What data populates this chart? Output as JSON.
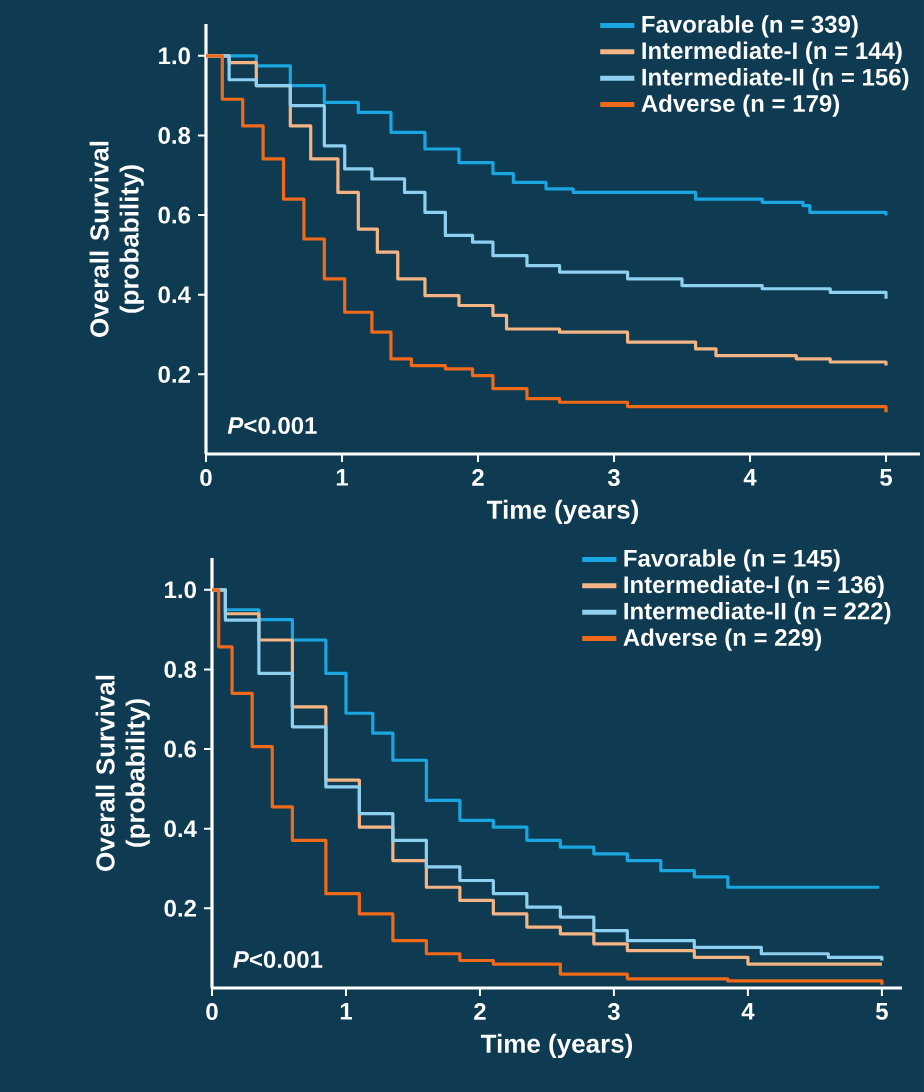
{
  "chart_data": [
    {
      "type": "step",
      "xlabel": "Time (years)",
      "ylabel": "Overall Survival (probability)",
      "xlim": [
        0,
        5.25
      ],
      "ylim": [
        0,
        1.08
      ],
      "xticks": [
        0,
        1,
        2,
        3,
        4,
        5
      ],
      "yticks": [
        {
          "value": 0.2,
          "label": "0.2"
        },
        {
          "value": 0.4,
          "label": "0.4"
        },
        {
          "value": 0.6,
          "label": "0.6"
        },
        {
          "value": 0.8,
          "label": "0.8"
        },
        {
          "value": 1,
          "label": "1.0"
        }
      ],
      "legend": "top right",
      "marker": "none",
      "line_style": "solid",
      "annotations": [
        "*P*<0.001"
      ],
      "series": [
        {
          "name": "Favorable (n = 339)",
          "color": "#1aa6e0",
          "x": [
            0,
            0.37,
            0.62,
            0.87,
            1.12,
            1.36,
            1.61,
            1.86,
            2.11,
            2.26,
            2.5,
            2.7,
            3.1,
            3.6,
            4.09,
            4.39,
            4.44,
            5
          ],
          "values": [
            1.0,
            0.975,
            0.925,
            0.883,
            0.858,
            0.808,
            0.766,
            0.732,
            0.704,
            0.682,
            0.666,
            0.657,
            0.657,
            0.64,
            0.632,
            0.624,
            0.607,
            0.599
          ]
        },
        {
          "name": "Intermediate-I (n = 144)",
          "color": "#f5b483",
          "x": [
            0,
            0.17,
            0.37,
            0.62,
            0.77,
            0.97,
            1.12,
            1.26,
            1.41,
            1.61,
            1.86,
            2.11,
            2.21,
            2.6,
            3.1,
            3.6,
            3.75,
            4.34,
            4.59,
            5
          ],
          "values": [
            1.0,
            0.983,
            0.925,
            0.824,
            0.741,
            0.657,
            0.565,
            0.507,
            0.44,
            0.398,
            0.373,
            0.348,
            0.314,
            0.306,
            0.281,
            0.264,
            0.247,
            0.239,
            0.231,
            0.222
          ]
        },
        {
          "name": "Intermediate-II (n = 156)",
          "color": "#8fd0f0",
          "x": [
            0,
            0.17,
            0.37,
            0.62,
            0.87,
            1.02,
            1.22,
            1.46,
            1.61,
            1.76,
            1.96,
            2.11,
            2.36,
            2.6,
            3.1,
            3.5,
            4.09,
            4.59,
            5
          ],
          "values": [
            1.0,
            0.94,
            0.925,
            0.875,
            0.774,
            0.716,
            0.691,
            0.657,
            0.607,
            0.549,
            0.532,
            0.498,
            0.473,
            0.457,
            0.44,
            0.423,
            0.415,
            0.406,
            0.39
          ]
        },
        {
          "name": "Adverse (n = 179)",
          "color": "#f06a1a",
          "x": [
            0,
            0.12,
            0.27,
            0.42,
            0.57,
            0.72,
            0.87,
            1.02,
            1.22,
            1.36,
            1.51,
            1.76,
            1.96,
            2.11,
            2.36,
            2.6,
            3.1,
            4.09,
            5
          ],
          "values": [
            1.0,
            0.891,
            0.824,
            0.741,
            0.64,
            0.54,
            0.44,
            0.356,
            0.306,
            0.239,
            0.222,
            0.214,
            0.197,
            0.164,
            0.139,
            0.13,
            0.119,
            0.119,
            0.105
          ]
        }
      ]
    },
    {
      "type": "step",
      "xlabel": "Time (years)",
      "ylabel": "Overall Survival (probability)",
      "xlim": [
        0,
        5.15
      ],
      "ylim": [
        0,
        1.08
      ],
      "xticks": [
        0,
        1,
        2,
        3,
        4,
        5
      ],
      "yticks": [
        {
          "value": 0.2,
          "label": "0.2"
        },
        {
          "value": 0.4,
          "label": "0.4"
        },
        {
          "value": 0.6,
          "label": "0.6"
        },
        {
          "value": 0.8,
          "label": "0.8"
        },
        {
          "value": 1,
          "label": "1.0"
        }
      ],
      "legend": "top right",
      "marker": "none",
      "line_style": "solid",
      "annotations": [
        "*P*<0.001"
      ],
      "series": [
        {
          "name": "Favorable (n = 145)",
          "color": "#1aa6e0",
          "x": [
            0,
            0.1,
            0.35,
            0.6,
            0.85,
            1.0,
            1.2,
            1.35,
            1.6,
            1.85,
            2.1,
            2.35,
            2.6,
            2.85,
            3.1,
            3.35,
            3.6,
            3.85,
            4.98
          ],
          "values": [
            1.0,
            0.95,
            0.925,
            0.874,
            0.79,
            0.69,
            0.64,
            0.572,
            0.471,
            0.421,
            0.404,
            0.371,
            0.354,
            0.337,
            0.32,
            0.295,
            0.279,
            0.253,
            0.253
          ]
        },
        {
          "name": "Intermediate-I (n = 136)",
          "color": "#f5b483",
          "x": [
            0,
            0.1,
            0.35,
            0.6,
            0.85,
            1.1,
            1.35,
            1.6,
            1.85,
            2.1,
            2.35,
            2.6,
            2.85,
            3.1,
            3.6,
            4.0,
            5
          ],
          "values": [
            1.0,
            0.94,
            0.874,
            0.706,
            0.522,
            0.404,
            0.32,
            0.253,
            0.22,
            0.186,
            0.153,
            0.136,
            0.111,
            0.094,
            0.077,
            0.06,
            0.06
          ]
        },
        {
          "name": "Intermediate-II (n = 222)",
          "color": "#8fd0f0",
          "x": [
            0,
            0.1,
            0.35,
            0.6,
            0.85,
            1.1,
            1.35,
            1.6,
            1.85,
            2.1,
            2.35,
            2.6,
            2.85,
            3.1,
            3.6,
            4.1,
            4.6,
            5
          ],
          "values": [
            1.0,
            0.924,
            0.79,
            0.656,
            0.505,
            0.438,
            0.371,
            0.304,
            0.27,
            0.237,
            0.203,
            0.178,
            0.144,
            0.119,
            0.102,
            0.086,
            0.077,
            0.069
          ]
        },
        {
          "name": "Adverse (n = 229)",
          "color": "#f06a1a",
          "x": [
            0,
            0.05,
            0.15,
            0.3,
            0.45,
            0.6,
            0.85,
            1.1,
            1.35,
            1.6,
            1.85,
            2.1,
            2.6,
            3.1,
            3.85,
            5
          ],
          "values": [
            1.0,
            0.857,
            0.74,
            0.606,
            0.455,
            0.371,
            0.237,
            0.186,
            0.119,
            0.086,
            0.069,
            0.06,
            0.035,
            0.023,
            0.018,
            0.008
          ]
        }
      ]
    }
  ]
}
